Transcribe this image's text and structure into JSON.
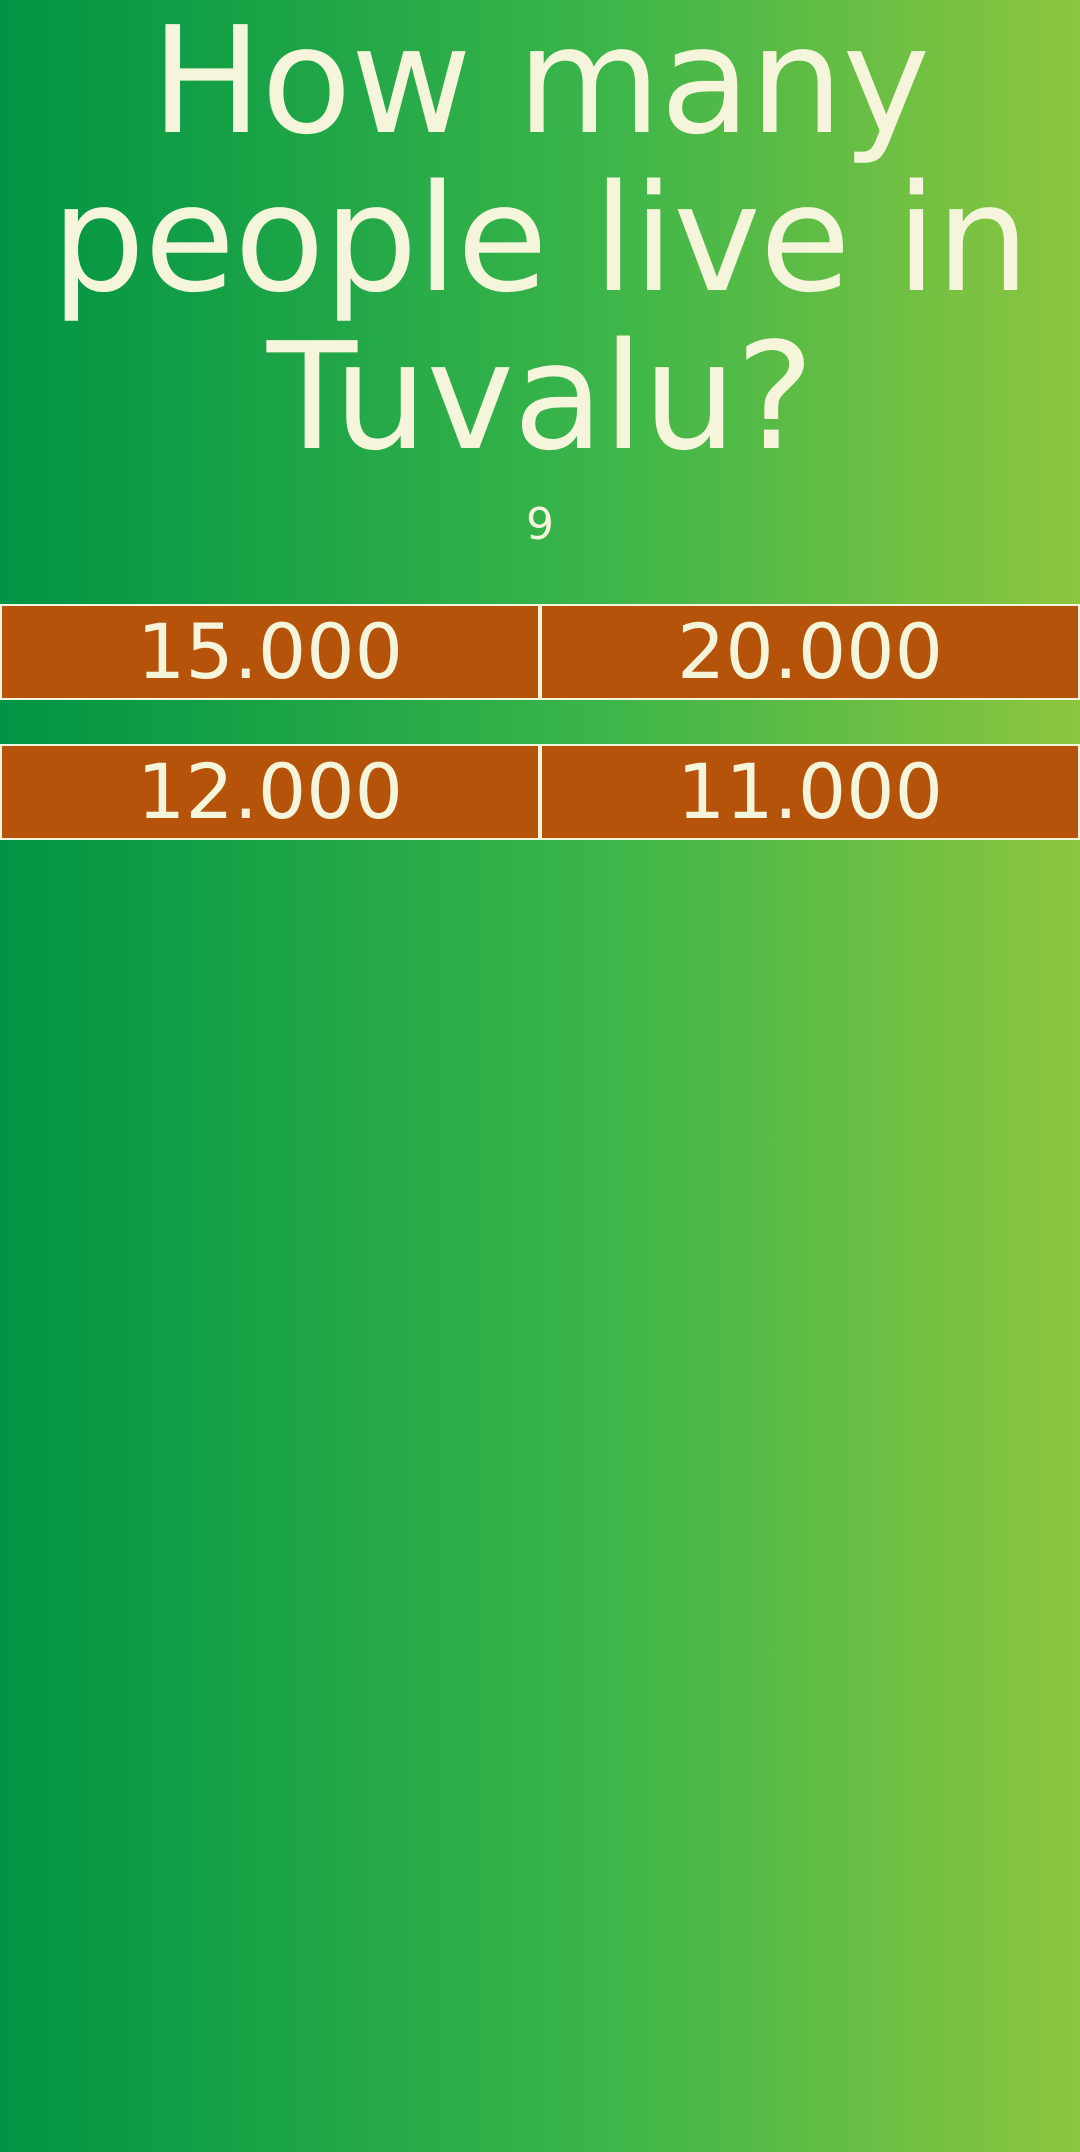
{
  "question": {
    "text": "How many people live in Tuvalu?"
  },
  "timer": {
    "value": "9"
  },
  "answers": [
    {
      "label": "15.000"
    },
    {
      "label": "20.000"
    },
    {
      "label": "12.000"
    },
    {
      "label": "11.000"
    }
  ],
  "colors": {
    "background_start": "#009444",
    "background_end": "#8dc63f",
    "answer_bg": "#b5530b",
    "text": "#f5f5dc"
  }
}
